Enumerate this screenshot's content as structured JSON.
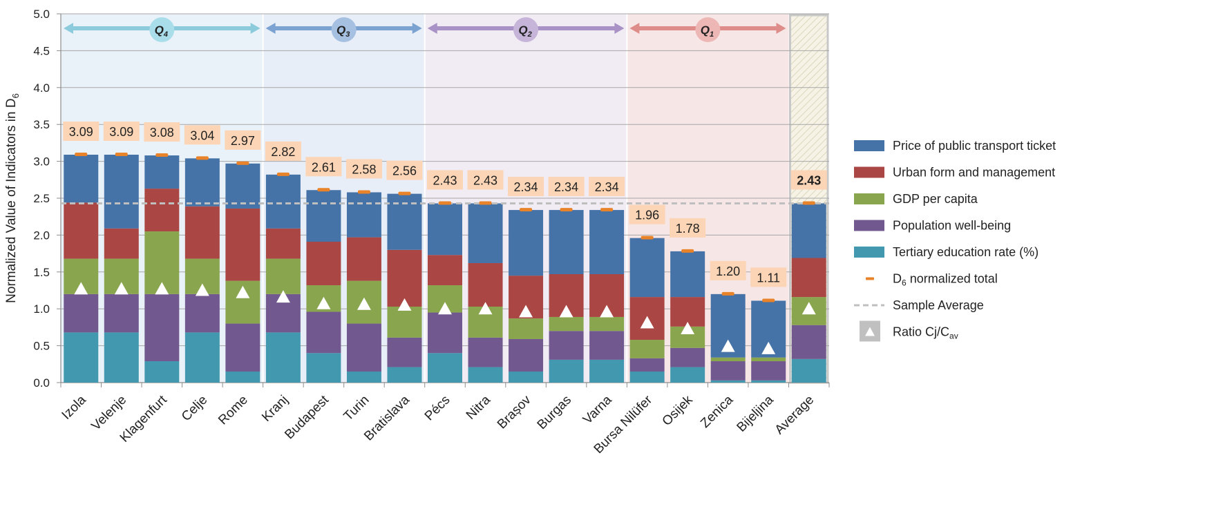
{
  "chart_data": {
    "type": "bar",
    "stacked": true,
    "ylabel": "Normalized Value of Indicators in D",
    "ylabel_sub": "6",
    "ylim": [
      0,
      5
    ],
    "yticks": [
      "0.0",
      "0.5",
      "1.0",
      "1.5",
      "2.0",
      "2.5",
      "3.0",
      "3.5",
      "4.0",
      "4.5",
      "5.0"
    ],
    "grid": true,
    "legend_position": "right",
    "categories": [
      "Izola",
      "Velenje",
      "Klagenfurt",
      "Celje",
      "Rome",
      "Kranj",
      "Budapest",
      "Turin",
      "Bratislava",
      "Pécs",
      "Nitra",
      "Brașov",
      "Burgas",
      "Varna",
      "Bursa Nilüfer",
      "Osijek",
      "Zenica",
      "Bijeljina",
      "Average"
    ],
    "series": [
      {
        "name": "Tertiary education rate (%)",
        "color": "#4198AF",
        "values": [
          0.68,
          0.68,
          0.29,
          0.68,
          0.15,
          0.68,
          0.4,
          0.15,
          0.21,
          0.4,
          0.21,
          0.15,
          0.31,
          0.31,
          0.15,
          0.21,
          0.03,
          0.03,
          0.32
        ]
      },
      {
        "name": "Population well-being",
        "color": "#71588F",
        "values": [
          0.52,
          0.52,
          0.91,
          0.52,
          0.65,
          0.52,
          0.56,
          0.65,
          0.4,
          0.55,
          0.4,
          0.44,
          0.39,
          0.39,
          0.18,
          0.26,
          0.26,
          0.26,
          0.46
        ]
      },
      {
        "name": "GDP per capita",
        "color": "#89A54E",
        "values": [
          0.48,
          0.48,
          0.85,
          0.48,
          0.58,
          0.48,
          0.36,
          0.58,
          0.42,
          0.37,
          0.42,
          0.28,
          0.19,
          0.19,
          0.25,
          0.29,
          0.05,
          0.05,
          0.38
        ]
      },
      {
        "name": "Urban form and management",
        "color": "#AA4643",
        "values": [
          0.76,
          0.41,
          0.58,
          0.71,
          0.98,
          0.41,
          0.59,
          0.59,
          0.77,
          0.41,
          0.59,
          0.58,
          0.58,
          0.58,
          0.58,
          0.4,
          0.0,
          0.0,
          0.53
        ]
      },
      {
        "name": "Price of public transport ticket",
        "color": "#4572A7",
        "values": [
          0.65,
          1.0,
          0.45,
          0.65,
          0.61,
          0.73,
          0.7,
          0.61,
          0.76,
          0.7,
          0.81,
          0.89,
          0.87,
          0.87,
          0.8,
          0.62,
          0.86,
          0.77,
          0.74
        ]
      }
    ],
    "totals": [
      3.09,
      3.09,
      3.08,
      3.04,
      2.97,
      2.82,
      2.61,
      2.58,
      2.56,
      2.43,
      2.43,
      2.34,
      2.34,
      2.34,
      1.96,
      1.78,
      1.2,
      1.11,
      2.43
    ],
    "total_labels": [
      "3.09",
      "3.09",
      "3.08",
      "3.04",
      "2.97",
      "2.82",
      "2.61",
      "2.58",
      "2.56",
      "2.43",
      "2.43",
      "2.34",
      "2.34",
      "2.34",
      "1.96",
      "1.78",
      "1.20",
      "1.11",
      "2.43"
    ],
    "ratio": [
      1.27,
      1.27,
      1.27,
      1.25,
      1.22,
      1.16,
      1.07,
      1.06,
      1.05,
      1.0,
      1.0,
      0.96,
      0.96,
      0.96,
      0.81,
      0.73,
      0.49,
      0.46,
      1.0
    ],
    "sample_average": 2.43,
    "quartiles": [
      {
        "label": "Q",
        "sub": "4",
        "from": 0,
        "to": 4,
        "band": "#EAF2F9",
        "arrow": "#8CCBDB",
        "badge": "#A9DDEA"
      },
      {
        "label": "Q",
        "sub": "3",
        "from": 5,
        "to": 8,
        "band": "#E8EEF7",
        "arrow": "#7BA2D1",
        "badge": "#A6C0E2"
      },
      {
        "label": "Q",
        "sub": "2",
        "from": 9,
        "to": 13,
        "band": "#F1EBF3",
        "arrow": "#A993C6",
        "badge": "#C6B4D9"
      },
      {
        "label": "Q",
        "sub": "1",
        "from": 14,
        "to": 17,
        "band": "#F7E6E6",
        "arrow": "#DE8D8A",
        "badge": "#EDB7B5"
      }
    ],
    "legend": [
      {
        "label": "Price of public transport ticket",
        "kind": "box",
        "color": "#4572A7"
      },
      {
        "label": "Urban form and management",
        "kind": "box",
        "color": "#AA4643"
      },
      {
        "label": "GDP per capita",
        "kind": "box",
        "color": "#89A54E"
      },
      {
        "label": "Population well-being",
        "kind": "box",
        "color": "#71588F"
      },
      {
        "label": "Tertiary education rate (%)",
        "kind": "box",
        "color": "#4198AF"
      },
      {
        "label": "D",
        "sub": "6",
        "suffix": " normalized total",
        "kind": "dash",
        "color": "#E8832A"
      },
      {
        "label": "Sample Average",
        "kind": "dashed-line",
        "color": "#BFBFBF"
      },
      {
        "label": "Ratio Cj/C",
        "sub": "av",
        "kind": "triangle",
        "color": "#C0C0C0"
      }
    ]
  }
}
